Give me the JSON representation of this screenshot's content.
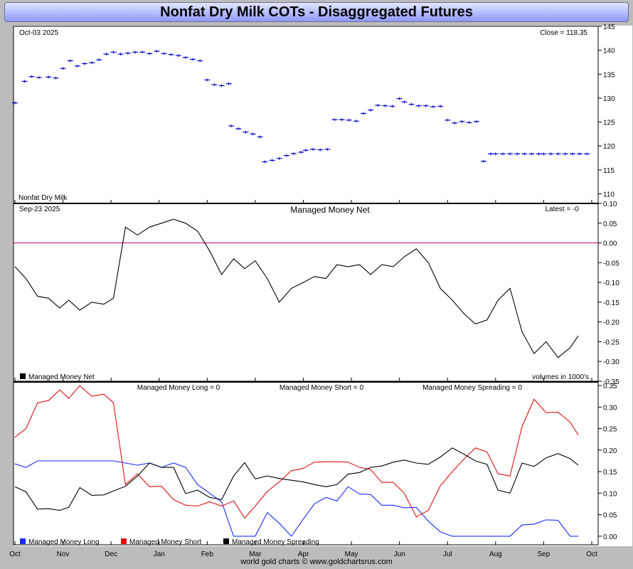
{
  "title": "Nonfat Dry Milk COTs - Disaggregated Futures",
  "footer": "world gold charts © www.goldchartsrus.com",
  "x_axis_labels": [
    "Oct",
    "Nov",
    "Dec",
    "Jan",
    "Feb",
    "Mar",
    "Apr",
    "May",
    "Jun",
    "Jul",
    "Aug",
    "Sep",
    "Oct"
  ],
  "colors": {
    "price": "#0000cc",
    "net": "#000000",
    "zero_line": "#cc0077",
    "long": "#1a2cff",
    "short": "#e01010",
    "spreading": "#000000"
  },
  "chart_data": [
    {
      "type": "line",
      "name": "price",
      "date_label": "Oct-03  2025",
      "close_label": "Close = 118.35",
      "instrument_label": "Nonfat Dry Milk",
      "ylim": [
        108,
        145
      ],
      "yticks": [
        110,
        115,
        120,
        125,
        130,
        135,
        140,
        145
      ],
      "x": [
        0,
        0.2,
        0.35,
        0.5,
        0.7,
        0.85,
        1.0,
        1.15,
        1.3,
        1.45,
        1.6,
        1.75,
        1.9,
        2.05,
        2.2,
        2.35,
        2.5,
        2.65,
        2.8,
        2.95,
        3.1,
        3.25,
        3.4,
        3.55,
        3.7,
        3.85,
        4.0,
        4.15,
        4.3,
        4.45,
        4.5,
        4.65,
        4.8,
        4.95,
        5.1,
        5.2,
        5.35,
        5.5,
        5.65,
        5.8,
        5.95,
        6.05,
        6.2,
        6.35,
        6.5,
        6.65,
        6.8,
        6.95,
        7.1,
        7.25,
        7.4,
        7.55,
        7.7,
        7.85,
        8.0,
        8.1,
        8.25,
        8.4,
        8.55,
        8.7,
        8.85,
        9.0,
        9.15,
        9.3,
        9.45,
        9.6,
        9.75,
        9.9,
        10.0,
        10.15,
        10.3,
        10.45,
        10.6,
        10.75,
        10.9,
        11.0,
        11.15,
        11.3,
        11.45,
        11.6,
        11.75,
        11.9
      ],
      "values": [
        129,
        133.5,
        134.5,
        134.3,
        134.4,
        134.2,
        136.2,
        137.8,
        136.7,
        137.2,
        137.4,
        138,
        139.2,
        139.6,
        139.2,
        139.4,
        139.6,
        139.6,
        139.3,
        139.8,
        139.3,
        139.1,
        138.9,
        138.5,
        138.1,
        137.8,
        133.8,
        132.8,
        132.6,
        133.0,
        124.2,
        123.6,
        122.9,
        122.5,
        121.9,
        116.7,
        117.0,
        117.4,
        118.0,
        118.4,
        118.7,
        119.1,
        119.3,
        119.2,
        119.3,
        125.5,
        125.5,
        125.4,
        125.2,
        126.8,
        127.5,
        128.5,
        128.4,
        128.3,
        129.9,
        129.2,
        128.7,
        128.4,
        128.4,
        128.2,
        128.3,
        125.4,
        124.8,
        125.1,
        124.9,
        125.1,
        116.8,
        118.35,
        118.35,
        118.35,
        118.35,
        118.35,
        118.35,
        118.35,
        118.35,
        118.35,
        118.35,
        118.35,
        118.35,
        118.35,
        118.35,
        118.35
      ]
    },
    {
      "type": "line",
      "name": "Managed Money Net",
      "date_label": "Sep-23  2025",
      "latest_label": "Latest = -0",
      "legend_label": "Managed Money Net",
      "volumes_note": "volumes in 1000's",
      "ylim": [
        -0.35,
        0.1
      ],
      "yticks": [
        0.1,
        0.05,
        0.0,
        -0.05,
        -0.1,
        -0.15,
        -0.2,
        -0.25,
        -0.3,
        -0.35
      ],
      "x": [
        0,
        0.23,
        0.47,
        0.7,
        0.93,
        1.12,
        1.35,
        1.6,
        1.85,
        2.05,
        2.3,
        2.55,
        2.8,
        3.05,
        3.3,
        3.55,
        3.8,
        4.05,
        4.3,
        4.55,
        4.78,
        5.0,
        5.25,
        5.5,
        5.75,
        6.0,
        6.23,
        6.47,
        6.7,
        6.93,
        7.17,
        7.4,
        7.63,
        7.87,
        8.1,
        8.35,
        8.6,
        8.85,
        9.1,
        9.35,
        9.58,
        9.82,
        10.05,
        10.3,
        10.55,
        10.8,
        11.05,
        11.3,
        11.55,
        11.72
      ],
      "values": [
        -0.06,
        -0.09,
        -0.135,
        -0.14,
        -0.165,
        -0.145,
        -0.17,
        -0.15,
        -0.155,
        -0.14,
        0.04,
        0.02,
        0.04,
        0.05,
        0.06,
        0.05,
        0.03,
        -0.02,
        -0.08,
        -0.04,
        -0.065,
        -0.045,
        -0.09,
        -0.15,
        -0.115,
        -0.1,
        -0.085,
        -0.09,
        -0.055,
        -0.06,
        -0.055,
        -0.08,
        -0.055,
        -0.06,
        -0.035,
        -0.015,
        -0.05,
        -0.115,
        -0.145,
        -0.18,
        -0.205,
        -0.195,
        -0.145,
        -0.115,
        -0.225,
        -0.28,
        -0.25,
        -0.29,
        -0.265,
        -0.235
      ]
    },
    {
      "type": "line",
      "name": "managed-money-positions",
      "ylim": [
        -0.02,
        0.36
      ],
      "yticks": [
        0.35,
        0.3,
        0.25,
        0.2,
        0.15,
        0.1,
        0.05,
        0.0
      ],
      "header_long": "Managed Money Long = 0",
      "header_short": "Managed Money Short = 0",
      "header_spreading": "Managed Money Spreading = 0",
      "series": [
        {
          "name": "Managed Money Long",
          "x": [
            0,
            0.23,
            0.47,
            0.7,
            0.93,
            1.12,
            1.35,
            1.6,
            1.85,
            2.05,
            2.3,
            2.55,
            2.8,
            3.05,
            3.3,
            3.55,
            3.8,
            4.05,
            4.3,
            4.55,
            4.78,
            5.0,
            5.25,
            5.5,
            5.75,
            6.0,
            6.23,
            6.47,
            6.7,
            6.93,
            7.17,
            7.4,
            7.63,
            7.87,
            8.1,
            8.35,
            8.6,
            8.85,
            9.1,
            9.35,
            9.58,
            9.82,
            10.05,
            10.3,
            10.55,
            10.8,
            11.05,
            11.3,
            11.55,
            11.72
          ],
          "values": [
            0.168,
            0.16,
            0.175,
            0.175,
            0.175,
            0.175,
            0.175,
            0.175,
            0.175,
            0.175,
            0.17,
            0.165,
            0.17,
            0.16,
            0.17,
            0.16,
            0.12,
            0.1,
            0.08,
            0.0,
            0.0,
            0.0,
            0.055,
            0.03,
            0.0,
            0.04,
            0.075,
            0.09,
            0.082,
            0.115,
            0.098,
            0.097,
            0.072,
            0.072,
            0.066,
            0.067,
            0.035,
            0.01,
            0.0,
            0.0,
            0.0,
            0.0,
            0.0,
            0.0,
            0.026,
            0.028,
            0.038,
            0.037,
            0.0,
            0.0
          ]
        },
        {
          "name": "Managed Money Short",
          "x": [
            0,
            0.23,
            0.47,
            0.7,
            0.93,
            1.12,
            1.35,
            1.6,
            1.85,
            2.05,
            2.3,
            2.55,
            2.8,
            3.05,
            3.3,
            3.55,
            3.8,
            4.05,
            4.3,
            4.55,
            4.78,
            5.0,
            5.25,
            5.5,
            5.75,
            6.0,
            6.23,
            6.47,
            6.7,
            6.93,
            7.17,
            7.4,
            7.63,
            7.87,
            8.1,
            8.35,
            8.6,
            8.85,
            9.1,
            9.35,
            9.58,
            9.82,
            10.05,
            10.3,
            10.55,
            10.8,
            11.05,
            11.3,
            11.55,
            11.72
          ],
          "values": [
            0.23,
            0.25,
            0.31,
            0.315,
            0.34,
            0.32,
            0.35,
            0.325,
            0.33,
            0.31,
            0.12,
            0.145,
            0.115,
            0.116,
            0.085,
            0.072,
            0.07,
            0.08,
            0.07,
            0.082,
            0.042,
            0.07,
            0.104,
            0.126,
            0.152,
            0.158,
            0.172,
            0.173,
            0.173,
            0.172,
            0.16,
            0.155,
            0.125,
            0.125,
            0.1,
            0.045,
            0.06,
            0.117,
            0.15,
            0.18,
            0.205,
            0.196,
            0.145,
            0.14,
            0.255,
            0.318,
            0.287,
            0.288,
            0.265,
            0.235
          ]
        },
        {
          "name": "Managed Money Spreading",
          "x": [
            0,
            0.23,
            0.47,
            0.7,
            0.93,
            1.12,
            1.35,
            1.6,
            1.85,
            2.05,
            2.3,
            2.55,
            2.8,
            3.05,
            3.3,
            3.55,
            3.8,
            4.05,
            4.3,
            4.55,
            4.78,
            5.0,
            5.25,
            5.5,
            5.75,
            6.0,
            6.23,
            6.47,
            6.7,
            6.93,
            7.17,
            7.4,
            7.63,
            7.87,
            8.1,
            8.35,
            8.6,
            8.85,
            9.1,
            9.35,
            9.58,
            9.82,
            10.05,
            10.3,
            10.55,
            10.8,
            11.05,
            11.3,
            11.55,
            11.72
          ],
          "values": [
            0.115,
            0.103,
            0.063,
            0.064,
            0.06,
            0.067,
            0.113,
            0.095,
            0.096,
            0.105,
            0.116,
            0.14,
            0.17,
            0.16,
            0.16,
            0.099,
            0.107,
            0.09,
            0.085,
            0.14,
            0.171,
            0.133,
            0.14,
            0.134,
            0.13,
            0.126,
            0.12,
            0.115,
            0.12,
            0.144,
            0.148,
            0.16,
            0.163,
            0.172,
            0.177,
            0.17,
            0.167,
            0.184,
            0.205,
            0.19,
            0.175,
            0.167,
            0.107,
            0.1,
            0.17,
            0.162,
            0.182,
            0.192,
            0.18,
            0.165
          ]
        }
      ],
      "legend_labels": [
        "Managed Money Long",
        "Managed Money Short",
        "Managed Money Spreading"
      ]
    }
  ]
}
